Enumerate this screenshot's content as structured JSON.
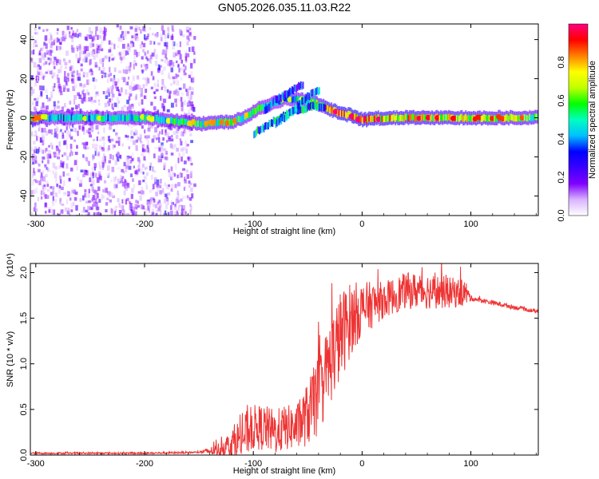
{
  "title": "GN05.2026.035.11.03.R22",
  "chart_data": [
    {
      "type": "heatmap",
      "name": "spectrogram",
      "xlabel": "Height of straight line (km)",
      "ylabel": "Frequency (Hz)",
      "xlim": [
        -305,
        162
      ],
      "ylim": [
        -50,
        48
      ],
      "x_ticks": [
        -300,
        -200,
        -100,
        0,
        100
      ],
      "y_ticks": [
        -40,
        -20,
        0,
        20,
        40
      ],
      "colorbar": {
        "label": "Normalized spectral amplitude",
        "range": [
          0,
          1
        ],
        "ticks": [
          "0.0",
          "0.2",
          "0.4",
          "0.6",
          "0.8"
        ],
        "stops": [
          "#ffffff",
          "#d9b3ff",
          "#8000ff",
          "#3a00ff",
          "#0000ff",
          "#00c0ff",
          "#00ffc0",
          "#00ff00",
          "#c0ff00",
          "#ffff00",
          "#ff8000",
          "#ff0000",
          "#ff0080"
        ]
      },
      "noise_band": {
        "x": [
          -305,
          -155
        ],
        "freq": [
          -50,
          48
        ],
        "amplitude": 0.15
      },
      "carrier": [
        {
          "x": -295,
          "f": 0,
          "a": 0.45
        },
        {
          "x": -200,
          "f": 0,
          "a": 0.45
        },
        {
          "x": -150,
          "f": -3,
          "a": 0.55
        },
        {
          "x": -120,
          "f": -2,
          "a": 0.6
        },
        {
          "x": -110,
          "f": 0,
          "a": 0.55
        },
        {
          "x": -95,
          "f": 5,
          "a": 0.5
        },
        {
          "x": -80,
          "f": 8,
          "a": 0.45
        },
        {
          "x": -70,
          "f": 10,
          "a": 0.45
        },
        {
          "x": -55,
          "f": 9,
          "a": 0.5
        },
        {
          "x": -45,
          "f": 8,
          "a": 0.55
        },
        {
          "x": -30,
          "f": 4,
          "a": 0.75
        },
        {
          "x": -10,
          "f": 1,
          "a": 0.85
        },
        {
          "x": 0,
          "f": -1,
          "a": 0.8
        },
        {
          "x": 20,
          "f": 0,
          "a": 0.75
        },
        {
          "x": 60,
          "f": 0,
          "a": 0.7
        },
        {
          "x": 110,
          "f": 0,
          "a": 0.65
        },
        {
          "x": 162,
          "f": 0,
          "a": 0.6
        }
      ],
      "tracks": [
        {
          "name": "descending-branch",
          "points": [
            {
              "x": -100,
              "f": -8
            },
            {
              "x": -85,
              "f": -3
            },
            {
              "x": -70,
              "f": 2
            },
            {
              "x": -60,
              "f": 4
            },
            {
              "x": -45,
              "f": 6
            },
            {
              "x": -35,
              "f": 5
            }
          ],
          "a": 0.4
        },
        {
          "name": "rising-branch",
          "points": [
            {
              "x": -80,
              "f": -3
            },
            {
              "x": -65,
              "f": 3
            },
            {
              "x": -55,
              "f": 9
            },
            {
              "x": -48,
              "f": 12
            },
            {
              "x": -40,
              "f": 14
            }
          ],
          "a": 0.35
        },
        {
          "name": "upper-branch",
          "points": [
            {
              "x": -90,
              "f": 4
            },
            {
              "x": -80,
              "f": 9
            },
            {
              "x": -70,
              "f": 12
            },
            {
              "x": -62,
              "f": 15
            },
            {
              "x": -55,
              "f": 17
            }
          ],
          "a": 0.3
        }
      ]
    },
    {
      "type": "line",
      "name": "snr",
      "xlabel": "Height of straight line (km)",
      "ylabel": "SNR (10 * v/v)",
      "multiplier_label": "(x10⁴)",
      "xlim": [
        -305,
        162
      ],
      "ylim": [
        0,
        2.1
      ],
      "x_ticks": [
        -300,
        -200,
        -100,
        0,
        100
      ],
      "y_ticks": [
        0.0,
        0.5,
        1.0,
        1.5,
        2.0
      ],
      "series": [
        {
          "name": "SNR",
          "color": "#ee3333",
          "points": [
            [
              -305,
              0.02
            ],
            [
              -200,
              0.02
            ],
            [
              -150,
              0.03
            ],
            [
              -135,
              0.05
            ],
            [
              -120,
              0.12
            ],
            [
              -110,
              0.2
            ],
            [
              -100,
              0.3
            ],
            [
              -90,
              0.3
            ],
            [
              -80,
              0.25
            ],
            [
              -70,
              0.3
            ],
            [
              -60,
              0.3
            ],
            [
              -50,
              0.45
            ],
            [
              -40,
              0.65
            ],
            [
              -30,
              1.0
            ],
            [
              -20,
              1.3
            ],
            [
              -10,
              1.5
            ],
            [
              0,
              1.6
            ],
            [
              10,
              1.65
            ],
            [
              20,
              1.7
            ],
            [
              30,
              1.75
            ],
            [
              40,
              1.8
            ],
            [
              60,
              1.8
            ],
            [
              80,
              1.78
            ],
            [
              95,
              1.78
            ],
            [
              100,
              1.72
            ],
            [
              120,
              1.67
            ],
            [
              140,
              1.62
            ],
            [
              162,
              1.57
            ]
          ],
          "noise_amplitude": [
            [
              -305,
              0.01
            ],
            [
              -150,
              0.01
            ],
            [
              -130,
              0.08
            ],
            [
              -110,
              0.25
            ],
            [
              -60,
              0.25
            ],
            [
              -40,
              0.45
            ],
            [
              -20,
              0.5
            ],
            [
              0,
              0.3
            ],
            [
              20,
              0.2
            ],
            [
              60,
              0.2
            ],
            [
              95,
              0.15
            ],
            [
              100,
              0.03
            ],
            [
              162,
              0.02
            ]
          ]
        }
      ]
    }
  ]
}
